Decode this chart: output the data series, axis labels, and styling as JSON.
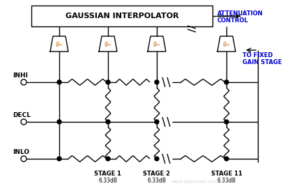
{
  "bg_color": "#ffffff",
  "line_color": "#000000",
  "figsize": [
    4.1,
    2.7
  ],
  "dpi": 100,
  "gaussian_text": "GAUSSIAN INTERPOLATOR",
  "attenuation_lines": [
    "ATTENUATION",
    "CONTROL"
  ],
  "fixed_gain_lines": [
    "TO FIXED",
    "GAIN STAGE"
  ],
  "inhi_label": "INHI",
  "decl_label": "DECL",
  "inlo_label": "INLO",
  "stage_labels": [
    "STAGE 1",
    "STAGE 2",
    "STAGE 11"
  ],
  "stage_db": [
    "6.33dB",
    "6.33dB",
    "6.33dB"
  ],
  "watermark": "www.dianyuan.com",
  "label_blue": "#0000cc"
}
